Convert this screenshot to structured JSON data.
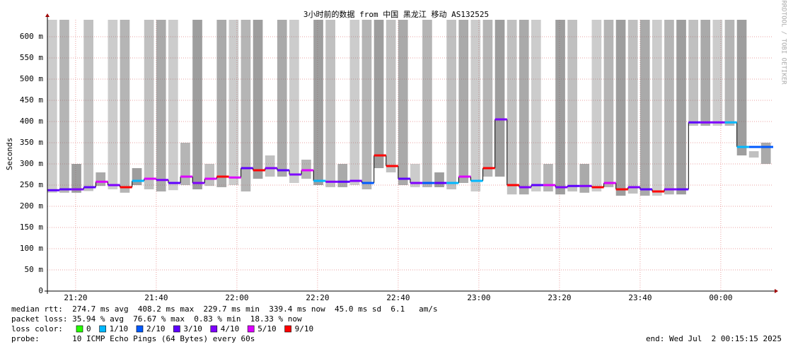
{
  "chart_data": {
    "type": "smokeping",
    "title": "3小时前的数据 from 中国 黑龙江 移动 AS132525",
    "y_label": "Seconds",
    "watermark": "RRDTOOL / TOBI OETIKER",
    "x": [
      "21:13",
      "21:16",
      "21:19",
      "21:22",
      "21:25",
      "21:28",
      "21:31",
      "21:34",
      "21:37",
      "21:40",
      "21:43",
      "21:46",
      "21:49",
      "21:52",
      "21:55",
      "21:58",
      "22:01",
      "22:04",
      "22:07",
      "22:10",
      "22:13",
      "22:16",
      "22:19",
      "22:22",
      "22:25",
      "22:28",
      "22:31",
      "22:34",
      "22:37",
      "22:40",
      "22:43",
      "22:46",
      "22:49",
      "22:52",
      "22:55",
      "22:58",
      "23:01",
      "23:04",
      "23:07",
      "23:10",
      "23:13",
      "23:16",
      "23:19",
      "23:22",
      "23:25",
      "23:28",
      "23:31",
      "23:34",
      "23:37",
      "23:40",
      "23:43",
      "23:46",
      "23:49",
      "23:52",
      "23:55",
      "23:58",
      "00:01",
      "00:04",
      "00:07",
      "00:10",
      "00:13"
    ],
    "xlim": [
      "21:13",
      "00:13"
    ],
    "xticks": [
      "21:20",
      "21:40",
      "22:00",
      "22:20",
      "22:40",
      "23:00",
      "23:20",
      "23:40",
      "00:00"
    ],
    "ylim": [
      0,
      640
    ],
    "yticks": [
      0,
      {
        "value": 50,
        "label": "50 m"
      },
      {
        "value": 100,
        "label": "100 m"
      },
      {
        "value": 150,
        "label": "150 m"
      },
      {
        "value": 200,
        "label": "200 m"
      },
      {
        "value": 250,
        "label": "250 m"
      },
      {
        "value": 300,
        "label": "300 m"
      },
      {
        "value": 350,
        "label": "350 m"
      },
      {
        "value": 400,
        "label": "400 m"
      },
      {
        "value": 450,
        "label": "450 m"
      },
      {
        "value": 500,
        "label": "500 m"
      },
      {
        "value": 550,
        "label": "550 m"
      },
      {
        "value": 600,
        "label": "600 m"
      }
    ],
    "grid": true,
    "median": [
      238,
      240,
      240,
      245,
      258,
      250,
      245,
      260,
      265,
      262,
      255,
      270,
      255,
      265,
      270,
      268,
      290,
      285,
      290,
      285,
      275,
      285,
      260,
      258,
      258,
      260,
      255,
      320,
      295,
      265,
      255,
      255,
      255,
      255,
      270,
      260,
      290,
      405,
      250,
      245,
      250,
      250,
      245,
      248,
      248,
      245,
      255,
      240,
      245,
      240,
      235,
      240,
      240,
      398,
      398,
      398,
      398,
      340,
      340,
      340,
      null
    ],
    "loss": [
      3,
      3,
      4,
      3,
      5,
      4,
      9,
      1,
      5,
      4,
      3,
      5,
      4,
      5,
      9,
      5,
      3,
      9,
      4,
      3,
      4,
      5,
      1,
      4,
      3,
      4,
      2,
      9,
      9,
      3,
      4,
      2,
      3,
      1,
      5,
      1,
      9,
      4,
      9,
      4,
      3,
      5,
      4,
      3,
      4,
      9,
      5,
      9,
      4,
      3,
      9,
      4,
      3,
      3,
      4,
      4,
      1,
      1,
      2,
      2,
      null
    ],
    "smoke": {
      "color": "#6e6e6e",
      "min": [
        232,
        232,
        232,
        236,
        248,
        240,
        232,
        250,
        240,
        235,
        238,
        250,
        240,
        248,
        245,
        250,
        235,
        265,
        270,
        270,
        255,
        265,
        250,
        245,
        245,
        250,
        240,
        290,
        280,
        250,
        245,
        245,
        245,
        240,
        255,
        235,
        270,
        270,
        228,
        228,
        235,
        235,
        228,
        235,
        232,
        235,
        245,
        225,
        230,
        225,
        225,
        228,
        228,
        390,
        390,
        390,
        390,
        320,
        315,
        300,
        null
      ],
      "max": [
        640,
        640,
        300,
        640,
        280,
        640,
        640,
        290,
        640,
        640,
        640,
        350,
        640,
        300,
        640,
        640,
        640,
        640,
        320,
        640,
        640,
        310,
        640,
        640,
        300,
        640,
        640,
        640,
        640,
        640,
        300,
        640,
        280,
        640,
        640,
        640,
        640,
        640,
        640,
        640,
        640,
        300,
        640,
        640,
        300,
        640,
        640,
        640,
        640,
        640,
        640,
        640,
        640,
        640,
        640,
        640,
        640,
        640,
        330,
        350,
        null
      ]
    },
    "loss_legend_label": "loss color:",
    "loss_legend": [
      {
        "value": 0,
        "label": "0",
        "color": "#26ff00"
      },
      {
        "value": 1,
        "label": "1/10",
        "color": "#00b8ff"
      },
      {
        "value": 2,
        "label": "2/10",
        "color": "#0059ff"
      },
      {
        "value": 3,
        "label": "3/10",
        "color": "#5e00ff"
      },
      {
        "value": 4,
        "label": "4/10",
        "color": "#7e00ff"
      },
      {
        "value": 5,
        "label": "5/10",
        "color": "#dd00ff"
      },
      {
        "value": 9,
        "label": "9/10",
        "color": "#ff0000"
      }
    ],
    "stats": [
      "median rtt:  274.7 ms avg  408.2 ms max  229.7 ms min  339.4 ms now  45.0 ms sd  6.1   am/s",
      "packet loss: 35.94 % avg  76.67 % max  0.83 % min  18.33 % now"
    ],
    "probe": "probe:       10 ICMP Echo Pings (64 Bytes) every 60s",
    "end": "end: Wed Jul  2 00:15:15 2025"
  }
}
